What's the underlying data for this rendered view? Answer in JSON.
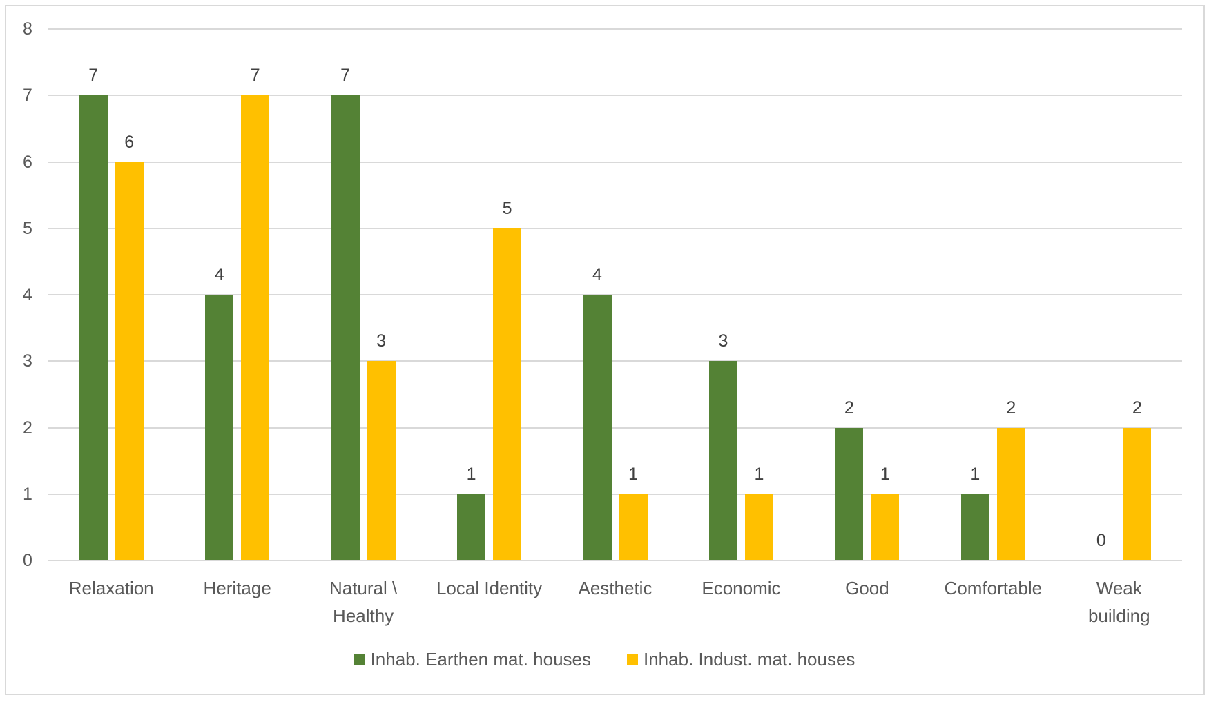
{
  "chart_data": {
    "type": "bar",
    "title": "",
    "xlabel": "",
    "ylabel": "",
    "ylim": [
      0,
      8
    ],
    "yticks": [
      0,
      1,
      2,
      3,
      4,
      5,
      6,
      7,
      8
    ],
    "grid": true,
    "legend_position": "bottom",
    "categories": [
      "Relaxation",
      "Heritage",
      "Natural \\\nHealthy",
      "Local Identity",
      "Aesthetic",
      "Economic",
      "Good",
      "Comfortable",
      "Weak\nbuilding"
    ],
    "series": [
      {
        "name": "Inhab. Earthen mat. houses",
        "color": "#548235",
        "values": [
          7,
          4,
          7,
          1,
          4,
          3,
          2,
          1,
          0
        ]
      },
      {
        "name": "Inhab. Indust. mat. houses",
        "color": "#FFC000",
        "values": [
          6,
          7,
          3,
          5,
          1,
          1,
          1,
          2,
          2
        ]
      }
    ]
  },
  "colors": {
    "gridline": "#D9D9D9",
    "text": "#595959",
    "border": "#D9D9D9"
  }
}
